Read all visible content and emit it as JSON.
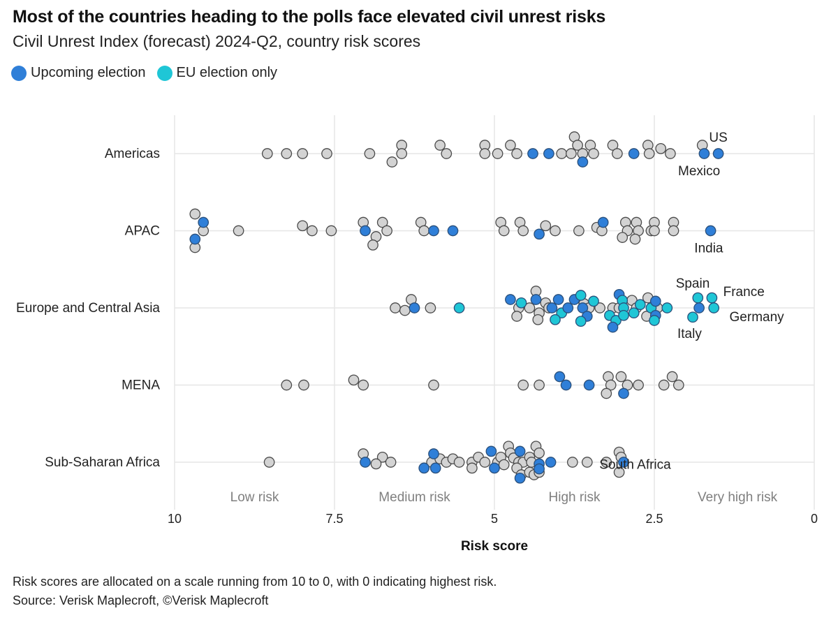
{
  "chart_data": {
    "type": "scatter",
    "title": "Most of the countries heading to the polls face elevated civil unrest risks",
    "subtitle": "Civil Unrest Index (forecast) 2024-Q2, country risk scores",
    "xlabel": "Risk score",
    "xlim": [
      10,
      0
    ],
    "x_reversed": true,
    "x_ticks": [
      10,
      7.5,
      5,
      2.5,
      0
    ],
    "x_tick_labels": [
      "10",
      "7.5",
      "5",
      "2.5",
      "0"
    ],
    "grid": true,
    "legend_position": "top-left",
    "legend": [
      {
        "label": "Upcoming election",
        "category": "election",
        "color": "#2f7fd8"
      },
      {
        "label": "EU election only",
        "category": "eu",
        "color": "#1fc6d6"
      }
    ],
    "default_color": "#d3d3d3",
    "bands": [
      {
        "label": "Low risk",
        "x": 8.75
      },
      {
        "label": "Medium risk",
        "x": 6.25
      },
      {
        "label": "High risk",
        "x": 3.75
      },
      {
        "label": "Very high risk",
        "x": 1.2
      }
    ],
    "regions": [
      {
        "name": "Americas",
        "points": [
          {
            "x": 8.55,
            "o": 0
          },
          {
            "x": 8.25,
            "o": 0
          },
          {
            "x": 8.0,
            "o": 0
          },
          {
            "x": 7.62,
            "o": 0
          },
          {
            "x": 6.95,
            "o": 0
          },
          {
            "x": 6.45,
            "o": -1
          },
          {
            "x": 6.45,
            "o": 0
          },
          {
            "x": 6.6,
            "o": 1
          },
          {
            "x": 5.85,
            "o": -1
          },
          {
            "x": 5.75,
            "o": 0
          },
          {
            "x": 5.15,
            "o": -1
          },
          {
            "x": 5.15,
            "o": 0
          },
          {
            "x": 4.95,
            "o": 0
          },
          {
            "x": 4.75,
            "o": -1
          },
          {
            "x": 4.65,
            "o": 0
          },
          {
            "x": 4.4,
            "o": 0,
            "c": "election"
          },
          {
            "x": 4.15,
            "o": 0,
            "c": "election"
          },
          {
            "x": 3.95,
            "o": 0
          },
          {
            "x": 3.8,
            "o": 0
          },
          {
            "x": 3.75,
            "o": -2
          },
          {
            "x": 3.7,
            "o": -1
          },
          {
            "x": 3.62,
            "o": 0
          },
          {
            "x": 3.62,
            "o": 1,
            "c": "election"
          },
          {
            "x": 3.5,
            "o": -1
          },
          {
            "x": 3.45,
            "o": 0
          },
          {
            "x": 3.15,
            "o": -1
          },
          {
            "x": 3.08,
            "o": 0
          },
          {
            "x": 2.82,
            "o": 0,
            "c": "election"
          },
          {
            "x": 2.6,
            "o": -1
          },
          {
            "x": 2.58,
            "o": 0
          },
          {
            "x": 2.4,
            "o": -0.6
          },
          {
            "x": 2.25,
            "o": 0
          },
          {
            "x": 1.75,
            "o": -1
          },
          {
            "x": 1.72,
            "o": 0,
            "c": "election"
          },
          {
            "x": 1.5,
            "o": 0,
            "c": "election"
          }
        ],
        "annotations": [
          {
            "label": "US",
            "x": 1.5,
            "o": -2
          },
          {
            "label": "Mexico",
            "x": 1.8,
            "o": 2
          }
        ]
      },
      {
        "name": "APAC",
        "points": [
          {
            "x": 9.68,
            "o": -2
          },
          {
            "x": 9.55,
            "o": -1,
            "c": "election"
          },
          {
            "x": 9.55,
            "o": 0
          },
          {
            "x": 9.68,
            "o": 1,
            "c": "election"
          },
          {
            "x": 9.68,
            "o": 2
          },
          {
            "x": 9.0,
            "o": 0
          },
          {
            "x": 8.0,
            "o": -0.6
          },
          {
            "x": 7.85,
            "o": 0
          },
          {
            "x": 7.55,
            "o": 0
          },
          {
            "x": 7.05,
            "o": -1
          },
          {
            "x": 7.02,
            "o": 0,
            "c": "election"
          },
          {
            "x": 6.75,
            "o": -1
          },
          {
            "x": 6.68,
            "o": 0
          },
          {
            "x": 6.85,
            "o": 0.7
          },
          {
            "x": 6.9,
            "o": 1.7
          },
          {
            "x": 6.15,
            "o": -1
          },
          {
            "x": 6.1,
            "o": 0
          },
          {
            "x": 5.95,
            "o": 0,
            "c": "election"
          },
          {
            "x": 5.65,
            "o": 0,
            "c": "election"
          },
          {
            "x": 4.9,
            "o": -1
          },
          {
            "x": 4.85,
            "o": 0
          },
          {
            "x": 4.6,
            "o": -1
          },
          {
            "x": 4.55,
            "o": 0
          },
          {
            "x": 4.3,
            "o": 0.4,
            "c": "election"
          },
          {
            "x": 4.2,
            "o": -0.6
          },
          {
            "x": 4.05,
            "o": 0
          },
          {
            "x": 3.68,
            "o": 0
          },
          {
            "x": 3.4,
            "o": -0.4
          },
          {
            "x": 3.3,
            "o": -1,
            "c": "election"
          },
          {
            "x": 3.32,
            "o": 0
          },
          {
            "x": 2.95,
            "o": -1
          },
          {
            "x": 2.92,
            "o": 0
          },
          {
            "x": 3.0,
            "o": 0.8
          },
          {
            "x": 2.78,
            "o": -1
          },
          {
            "x": 2.75,
            "o": 0
          },
          {
            "x": 2.8,
            "o": 1
          },
          {
            "x": 2.55,
            "o": 0
          },
          {
            "x": 2.5,
            "o": -1
          },
          {
            "x": 2.5,
            "o": 0
          },
          {
            "x": 2.2,
            "o": -1
          },
          {
            "x": 2.2,
            "o": 0
          },
          {
            "x": 1.62,
            "o": 0,
            "c": "election"
          }
        ],
        "annotations": [
          {
            "label": "India",
            "x": 1.65,
            "o": 2
          }
        ]
      },
      {
        "name": "Europe and Central Asia",
        "points": [
          {
            "x": 6.55,
            "o": 0
          },
          {
            "x": 6.3,
            "o": -1
          },
          {
            "x": 6.25,
            "o": 0,
            "c": "election"
          },
          {
            "x": 6.4,
            "o": 0.3
          },
          {
            "x": 6.0,
            "o": 0
          },
          {
            "x": 5.55,
            "o": 0,
            "c": "eu"
          },
          {
            "x": 4.75,
            "o": -1,
            "c": "election"
          },
          {
            "x": 4.62,
            "o": 0
          },
          {
            "x": 4.65,
            "o": 1
          },
          {
            "x": 4.58,
            "o": -0.6,
            "c": "eu"
          },
          {
            "x": 4.45,
            "o": 0
          },
          {
            "x": 4.35,
            "o": -2
          },
          {
            "x": 4.35,
            "o": -1,
            "c": "election"
          },
          {
            "x": 4.2,
            "o": -0.6
          },
          {
            "x": 4.15,
            "o": 0
          },
          {
            "x": 4.1,
            "o": 0,
            "c": "election"
          },
          {
            "x": 4.3,
            "o": 0.6
          },
          {
            "x": 4.32,
            "o": 1.4
          },
          {
            "x": 4.0,
            "o": -1,
            "c": "election"
          },
          {
            "x": 3.95,
            "o": 0.6,
            "c": "eu"
          },
          {
            "x": 4.05,
            "o": 1.4,
            "c": "eu"
          },
          {
            "x": 3.85,
            "o": 0,
            "c": "election"
          },
          {
            "x": 3.75,
            "o": -1,
            "c": "election"
          },
          {
            "x": 3.65,
            "o": -1.5,
            "c": "eu"
          },
          {
            "x": 3.6,
            "o": -0.5
          },
          {
            "x": 3.62,
            "o": 0,
            "c": "election"
          },
          {
            "x": 3.52,
            "o": 0
          },
          {
            "x": 3.45,
            "o": -0.8,
            "c": "eu"
          },
          {
            "x": 3.55,
            "o": 1,
            "c": "election"
          },
          {
            "x": 3.65,
            "o": 1.6,
            "c": "eu"
          },
          {
            "x": 3.35,
            "o": 0
          },
          {
            "x": 3.15,
            "o": 0
          },
          {
            "x": 3.2,
            "o": 0.9,
            "c": "eu"
          },
          {
            "x": 3.05,
            "o": -1.6,
            "c": "election"
          },
          {
            "x": 3.0,
            "o": -0.9,
            "c": "eu"
          },
          {
            "x": 3.05,
            "o": 0
          },
          {
            "x": 2.98,
            "o": 0,
            "c": "eu"
          },
          {
            "x": 3.1,
            "o": 1.5,
            "c": "eu"
          },
          {
            "x": 3.15,
            "o": 2.3,
            "c": "election"
          },
          {
            "x": 2.98,
            "o": 0.9,
            "c": "eu"
          },
          {
            "x": 2.85,
            "o": -0.9
          },
          {
            "x": 2.78,
            "o": 0
          },
          {
            "x": 2.82,
            "o": 0.6,
            "c": "eu"
          },
          {
            "x": 2.72,
            "o": -0.4,
            "c": "eu"
          },
          {
            "x": 2.6,
            "o": -1.2
          },
          {
            "x": 2.55,
            "o": 0,
            "c": "eu"
          },
          {
            "x": 2.62,
            "o": 1
          },
          {
            "x": 2.48,
            "o": -0.8,
            "c": "election"
          },
          {
            "x": 2.45,
            "o": 0
          },
          {
            "x": 2.48,
            "o": 0.9,
            "c": "election"
          },
          {
            "x": 2.5,
            "o": 1.5,
            "c": "eu"
          },
          {
            "x": 2.3,
            "o": 0,
            "c": "eu"
          },
          {
            "x": 1.82,
            "o": -1.2,
            "c": "eu"
          },
          {
            "x": 1.8,
            "o": 0,
            "c": "election"
          },
          {
            "x": 1.9,
            "o": 1.1,
            "c": "eu"
          },
          {
            "x": 1.6,
            "o": -1.2,
            "c": "eu"
          },
          {
            "x": 1.57,
            "o": 0,
            "c": "eu"
          }
        ],
        "annotations": [
          {
            "label": "Spain",
            "x": 1.9,
            "o": -3
          },
          {
            "label": "France",
            "x": 1.1,
            "o": -2
          },
          {
            "label": "Germany",
            "x": 0.9,
            "o": 1
          },
          {
            "label": "Italy",
            "x": 1.95,
            "o": 3
          }
        ]
      },
      {
        "name": "MENA",
        "points": [
          {
            "x": 8.25,
            "o": 0
          },
          {
            "x": 7.98,
            "o": 0
          },
          {
            "x": 7.2,
            "o": -0.6
          },
          {
            "x": 7.05,
            "o": 0
          },
          {
            "x": 5.95,
            "o": 0
          },
          {
            "x": 4.55,
            "o": 0
          },
          {
            "x": 4.3,
            "o": 0
          },
          {
            "x": 3.98,
            "o": -1,
            "c": "election"
          },
          {
            "x": 3.88,
            "o": 0,
            "c": "election"
          },
          {
            "x": 3.52,
            "o": 0,
            "c": "election"
          },
          {
            "x": 3.22,
            "o": -1
          },
          {
            "x": 3.18,
            "o": 0
          },
          {
            "x": 3.25,
            "o": 1
          },
          {
            "x": 3.02,
            "o": -1
          },
          {
            "x": 2.92,
            "o": 0
          },
          {
            "x": 2.98,
            "o": 1,
            "c": "election"
          },
          {
            "x": 2.75,
            "o": 0
          },
          {
            "x": 2.22,
            "o": -1
          },
          {
            "x": 2.35,
            "o": 0
          },
          {
            "x": 2.12,
            "o": 0
          }
        ],
        "annotations": []
      },
      {
        "name": "Sub-Saharan Africa",
        "points": [
          {
            "x": 8.52,
            "o": 0
          },
          {
            "x": 7.05,
            "o": -1
          },
          {
            "x": 7.02,
            "o": 0,
            "c": "election"
          },
          {
            "x": 6.75,
            "o": -0.6
          },
          {
            "x": 6.85,
            "o": 0.2
          },
          {
            "x": 6.62,
            "o": 0
          },
          {
            "x": 5.95,
            "o": -1,
            "c": "election"
          },
          {
            "x": 5.98,
            "o": 0
          },
          {
            "x": 6.1,
            "o": 0.7,
            "c": "election"
          },
          {
            "x": 5.92,
            "o": 0.7,
            "c": "election"
          },
          {
            "x": 5.85,
            "o": -0.4
          },
          {
            "x": 5.75,
            "o": 0
          },
          {
            "x": 5.65,
            "o": -0.4
          },
          {
            "x": 5.55,
            "o": 0
          },
          {
            "x": 5.35,
            "o": 0
          },
          {
            "x": 5.35,
            "o": 0.7
          },
          {
            "x": 5.25,
            "o": -0.6
          },
          {
            "x": 5.15,
            "o": 0
          },
          {
            "x": 5.05,
            "o": -1.3,
            "c": "election"
          },
          {
            "x": 4.95,
            "o": 0
          },
          {
            "x": 5.0,
            "o": 0.7,
            "c": "election"
          },
          {
            "x": 4.9,
            "o": -0.6
          },
          {
            "x": 4.85,
            "o": 0.3
          },
          {
            "x": 4.78,
            "o": -1.9
          },
          {
            "x": 4.75,
            "o": -1.1
          },
          {
            "x": 4.7,
            "o": -0.5
          },
          {
            "x": 4.62,
            "o": 0
          },
          {
            "x": 4.6,
            "o": -1.3,
            "c": "election"
          },
          {
            "x": 4.55,
            "o": 0
          },
          {
            "x": 4.65,
            "o": 0.7
          },
          {
            "x": 4.58,
            "o": 1.5
          },
          {
            "x": 4.6,
            "o": 1.9,
            "c": "election"
          },
          {
            "x": 4.45,
            "o": -0.6
          },
          {
            "x": 4.42,
            "o": 0
          },
          {
            "x": 4.45,
            "o": 1.2
          },
          {
            "x": 4.35,
            "o": -1.9
          },
          {
            "x": 4.38,
            "o": 1.5
          },
          {
            "x": 4.3,
            "o": -1.1
          },
          {
            "x": 4.3,
            "o": 0.2,
            "c": "election"
          },
          {
            "x": 4.3,
            "o": 0.8,
            "c": "election"
          },
          {
            "x": 4.3,
            "o": 1.2
          },
          {
            "x": 4.12,
            "o": 0,
            "c": "election"
          },
          {
            "x": 3.78,
            "o": 0
          },
          {
            "x": 3.55,
            "o": 0
          },
          {
            "x": 3.25,
            "o": 0
          },
          {
            "x": 3.05,
            "o": -1.2
          },
          {
            "x": 3.02,
            "o": -0.6
          },
          {
            "x": 2.98,
            "o": 0,
            "c": "election"
          },
          {
            "x": 3.05,
            "o": 1.2
          }
        ],
        "annotations": [
          {
            "label": "South Africa",
            "x": 2.8,
            "o": 0.2
          }
        ]
      }
    ]
  },
  "legend": {
    "election_label": "Upcoming election",
    "eu_label": "EU election only"
  },
  "footnotes": {
    "note": "Risk scores are allocated on a scale running from 10 to 0, with 0 indicating highest risk.",
    "source": "Source: Verisk Maplecroft, ©Verisk Maplecroft"
  }
}
